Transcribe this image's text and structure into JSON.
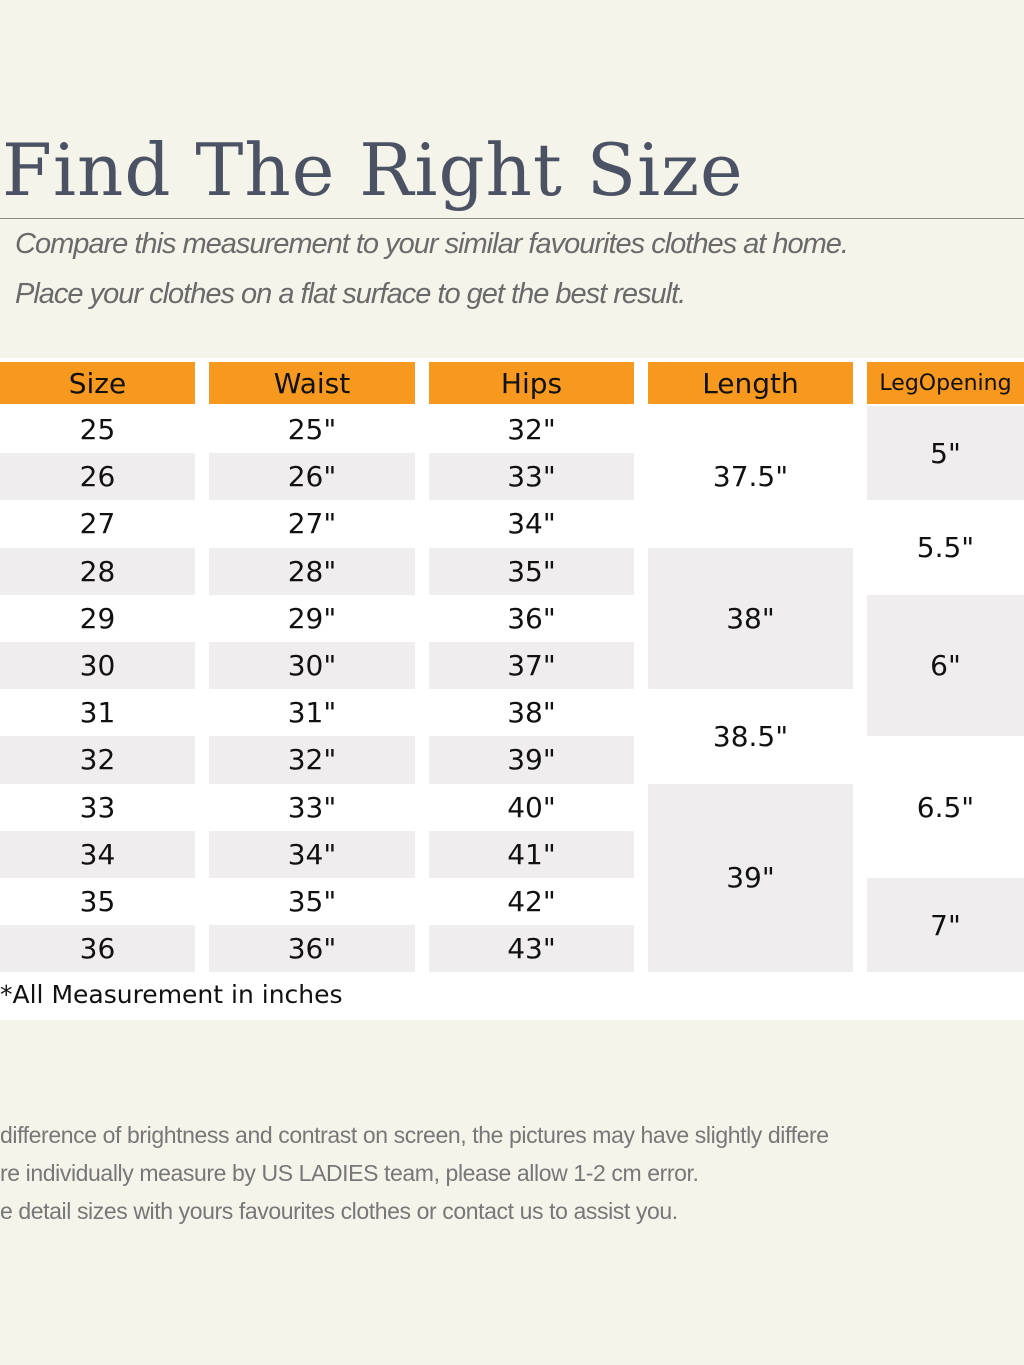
{
  "title": "Find The Right Size",
  "subtitle_lines": [
    "Compare this measurement to your similar favourites clothes at home.",
    "Place your clothes on a flat surface to get the best result."
  ],
  "table": {
    "headers": [
      "Size",
      "Waist",
      "Hips",
      "Length",
      "LegOpening"
    ],
    "header_color": "#f7991e",
    "sizes": [
      "25",
      "26",
      "27",
      "28",
      "29",
      "30",
      "31",
      "32",
      "33",
      "34",
      "35",
      "36"
    ],
    "waist": [
      "25\"",
      "26\"",
      "27\"",
      "28\"",
      "29\"",
      "30\"",
      "31\"",
      "32\"",
      "33\"",
      "34\"",
      "35\"",
      "36\""
    ],
    "hips": [
      "32\"",
      "33\"",
      "34\"",
      "35\"",
      "36\"",
      "37\"",
      "38\"",
      "39\"",
      "40\"",
      "41\"",
      "42\"",
      "43\""
    ],
    "length": [
      {
        "value": "37.5\"",
        "sizes": "25-27"
      },
      {
        "value": "38\"",
        "sizes": "28-30"
      },
      {
        "value": "38.5\"",
        "sizes": "31-32"
      },
      {
        "value": "39\"",
        "sizes": "33-36"
      }
    ],
    "leg_opening": [
      {
        "value": "5\"",
        "sizes": "25-26"
      },
      {
        "value": "5.5\"",
        "sizes": "27-28"
      },
      {
        "value": "6\"",
        "sizes": "29-31"
      },
      {
        "value": "6.5\"",
        "sizes": "32-34"
      },
      {
        "value": "7\"",
        "sizes": "35-36"
      }
    ]
  },
  "note": "*All Measurement in inches",
  "footer_lines": [
    "difference of brightness and contrast on screen, the pictures may have slightly differe",
    "re individually measure by US LADIES team, please allow 1-2 cm error.",
    "e detail sizes with yours favourites clothes or contact us to assist you."
  ]
}
